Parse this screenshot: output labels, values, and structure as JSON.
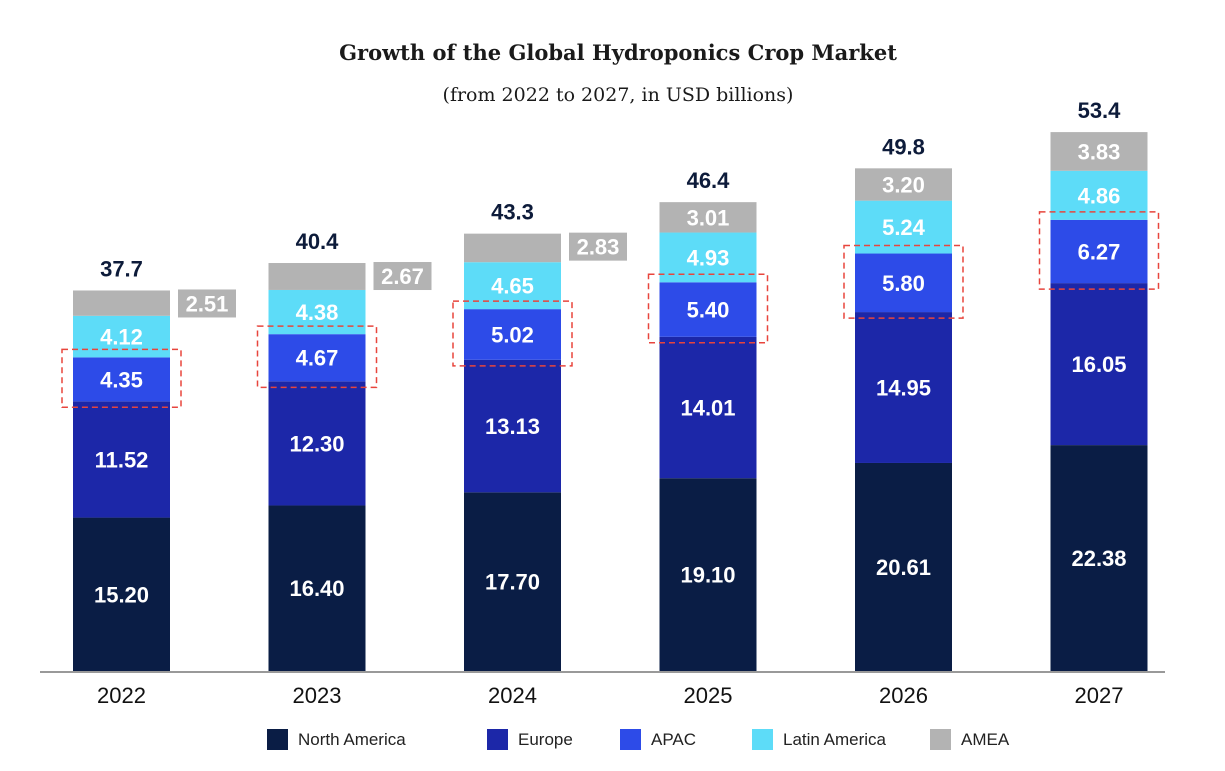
{
  "chart_data": {
    "type": "bar",
    "stacked": true,
    "title": "Growth of the Global Hydroponics Crop Market",
    "subtitle": "(from 2022 to 2027, in USD billions)",
    "categories": [
      "2022",
      "2023",
      "2024",
      "2025",
      "2026",
      "2027"
    ],
    "series": [
      {
        "name": "North America",
        "color": "#0a1d45",
        "values": [
          15.2,
          16.4,
          17.7,
          19.1,
          20.61,
          22.38
        ],
        "labels": [
          "15.20",
          "16.40",
          "17.70",
          "19.10",
          "20.61",
          "22.38"
        ]
      },
      {
        "name": "Europe",
        "color": "#1c27a8",
        "values": [
          11.52,
          12.3,
          13.13,
          14.01,
          14.95,
          16.05
        ],
        "labels": [
          "11.52",
          "12.30",
          "13.13",
          "14.01",
          "14.95",
          "16.05"
        ]
      },
      {
        "name": "APAC",
        "color": "#2d4be8",
        "values": [
          4.35,
          4.67,
          5.02,
          5.4,
          5.8,
          6.27
        ],
        "labels": [
          "4.35",
          "4.67",
          "5.02",
          "5.40",
          "5.80",
          "6.27"
        ],
        "highlighted": true
      },
      {
        "name": "Latin America",
        "color": "#5ddcf8",
        "values": [
          4.12,
          4.38,
          4.65,
          4.93,
          5.24,
          4.86
        ],
        "labels": [
          "4.12",
          "4.38",
          "4.65",
          "4.93",
          "5.24",
          "4.86"
        ]
      },
      {
        "name": "AMEA",
        "color": "#b3b3b3",
        "values": [
          2.51,
          2.67,
          2.83,
          3.01,
          3.2,
          3.83
        ],
        "labels": [
          "2.51",
          "2.67",
          "2.83",
          "3.01",
          "3.20",
          "3.83"
        ]
      }
    ],
    "totals": [
      "37.7",
      "40.4",
      "43.3",
      "46.4",
      "49.8",
      "53.4"
    ],
    "ylim": [
      0,
      53.4
    ],
    "grid": false,
    "legend_position": "bottom"
  }
}
